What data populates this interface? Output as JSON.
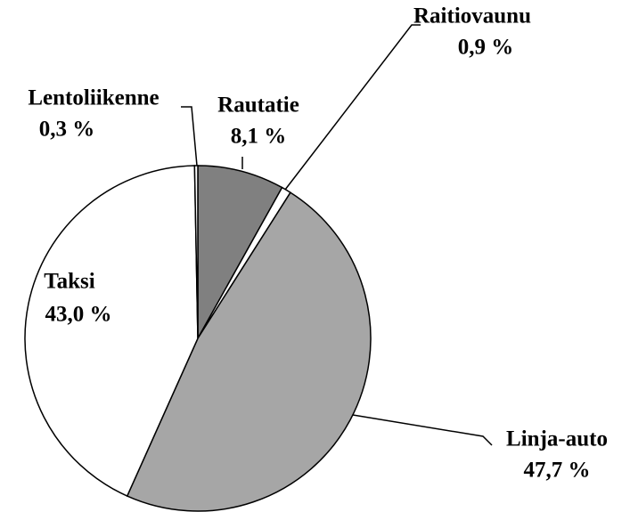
{
  "chart_data": {
    "type": "pie",
    "categories": [
      "Rautatie",
      "Raitiovaunu",
      "Linja-auto",
      "Taksi",
      "Lentoliikenne"
    ],
    "values": [
      8.1,
      0.9,
      47.7,
      43.0,
      0.3
    ],
    "value_labels": [
      "8,1 %",
      "0,9 %",
      "47,7 %",
      "43,0 %",
      "0,3 %"
    ],
    "colors": [
      "#808080",
      "#ffffff",
      "#a6a6a6",
      "#ffffff",
      "#ffffff"
    ]
  }
}
